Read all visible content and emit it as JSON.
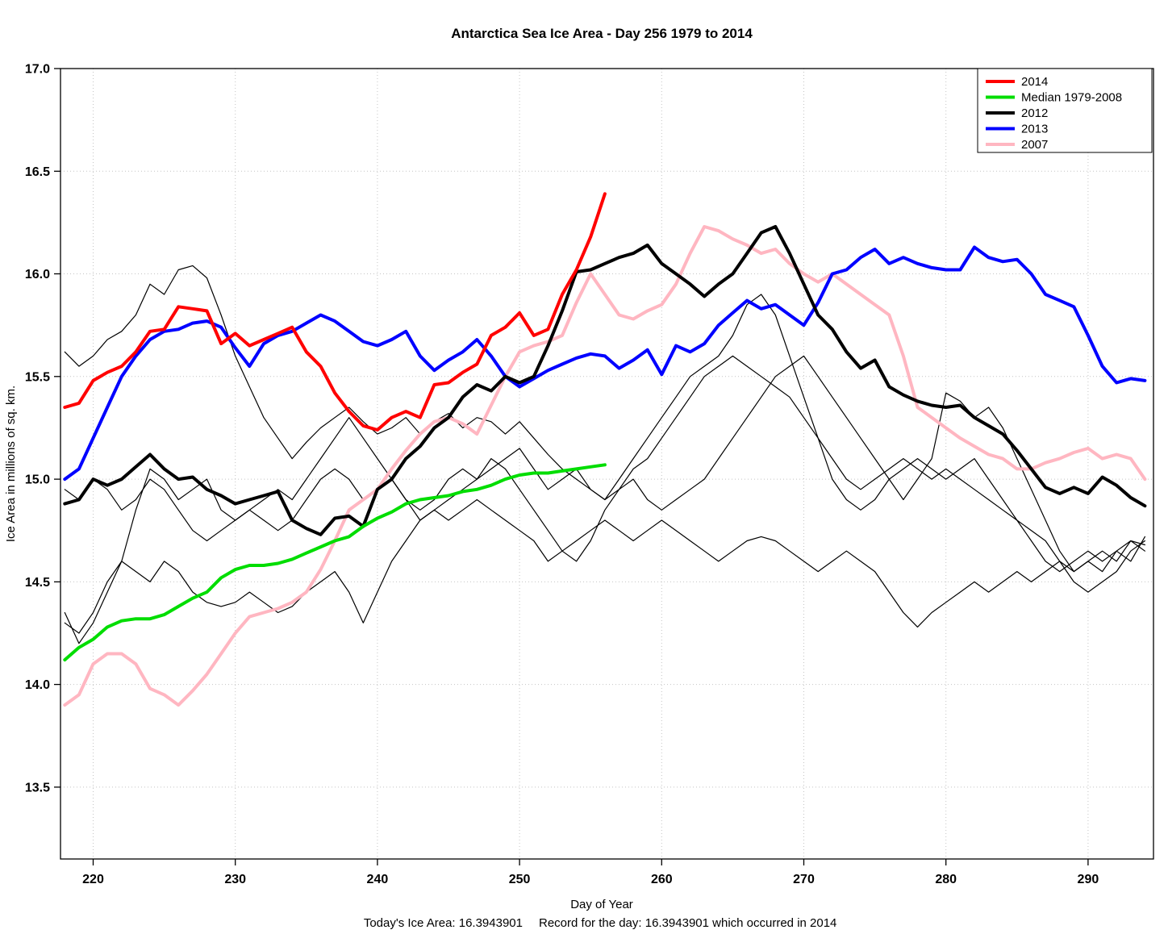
{
  "footer": {
    "today": "Today's Ice Area: 16.3943901",
    "record": "Record for the day: 16.3943901 which occurred in 2014"
  },
  "chart_data": {
    "type": "line",
    "title": "Antarctica Sea Ice Area - Day 256 1979 to 2014",
    "xlabel": "Day of Year",
    "ylabel": "Ice Area in millions of sq. km.",
    "xlim": [
      217.7,
      294.6
    ],
    "ylim": [
      13.15,
      17.0
    ],
    "grid": "dotted",
    "x_ticks": [
      220,
      230,
      240,
      250,
      260,
      270,
      280,
      290
    ],
    "x_tick_labels": [
      "220",
      "230",
      "240",
      "250",
      "260",
      "270",
      "280",
      "290"
    ],
    "y_ticks": [
      13.5,
      14.0,
      14.5,
      15.0,
      15.5,
      16.0,
      16.5,
      17.0
    ],
    "y_tick_labels": [
      "13.5",
      "14.0",
      "14.5",
      "15.0",
      "15.5",
      "16.0",
      "16.5",
      "17.0"
    ],
    "legend": {
      "position": "top-right",
      "items": [
        {
          "label": "2014",
          "color": "#ff0000"
        },
        {
          "label": "Median 1979-2008",
          "color": "#00dd00"
        },
        {
          "label": "2012",
          "color": "#000000"
        },
        {
          "label": "2013",
          "color": "#0000ff"
        },
        {
          "label": "2007",
          "color": "#ffb6c1"
        }
      ]
    },
    "series": [
      {
        "name": "other-year-1",
        "color": "#000000",
        "width": 1.2,
        "legend": false,
        "day_start": 218,
        "values": [
          15.62,
          15.55,
          15.6,
          15.68,
          15.72,
          15.8,
          15.95,
          15.9,
          16.02,
          16.04,
          15.98,
          15.8,
          15.6,
          15.45,
          15.3,
          15.2,
          15.1,
          15.18,
          15.25,
          15.3,
          15.35,
          15.28,
          15.22,
          15.25,
          15.3,
          15.22,
          15.28,
          15.32,
          15.25,
          15.3,
          15.28,
          15.22,
          15.28,
          15.2,
          15.12,
          15.05,
          15.0,
          14.95,
          14.9,
          15.0,
          15.1,
          15.2,
          15.3,
          15.4,
          15.5,
          15.55,
          15.6,
          15.7,
          15.85,
          15.9,
          15.8,
          15.6,
          15.4,
          15.2,
          15.0,
          14.9,
          14.85,
          14.9,
          15.0,
          15.05,
          15.1,
          15.05,
          15.0,
          15.05,
          15.1,
          15.0,
          14.9,
          14.8,
          14.7,
          14.6,
          14.55,
          14.6,
          14.65,
          14.6,
          14.65,
          14.7,
          14.68
        ]
      },
      {
        "name": "other-year-2",
        "color": "#000000",
        "width": 1.2,
        "legend": false,
        "day_start": 218,
        "values": [
          14.35,
          14.2,
          14.3,
          14.45,
          14.6,
          14.85,
          15.05,
          15.0,
          14.9,
          14.95,
          15.0,
          14.85,
          14.8,
          14.85,
          14.9,
          14.95,
          14.9,
          15.0,
          15.1,
          15.2,
          15.3,
          15.2,
          15.1,
          15.0,
          14.9,
          14.8,
          14.85,
          14.9,
          14.95,
          15.0,
          15.05,
          15.1,
          15.15,
          15.05,
          14.95,
          15.0,
          15.05,
          14.95,
          14.9,
          14.95,
          15.0,
          14.9,
          14.85,
          14.9,
          14.95,
          15.0,
          15.1,
          15.2,
          15.3,
          15.4,
          15.5,
          15.55,
          15.6,
          15.5,
          15.4,
          15.3,
          15.2,
          15.1,
          15.0,
          14.9,
          15.0,
          15.1,
          15.42,
          15.38,
          15.3,
          15.35,
          15.25,
          15.1,
          14.95,
          14.8,
          14.65,
          14.55,
          14.6,
          14.55,
          14.65,
          14.6,
          14.72
        ]
      },
      {
        "name": "other-year-3",
        "color": "#000000",
        "width": 1.2,
        "legend": false,
        "day_start": 218,
        "values": [
          14.3,
          14.25,
          14.35,
          14.5,
          14.6,
          14.55,
          14.5,
          14.6,
          14.55,
          14.45,
          14.4,
          14.38,
          14.4,
          14.45,
          14.4,
          14.35,
          14.38,
          14.45,
          14.5,
          14.55,
          14.45,
          14.3,
          14.45,
          14.6,
          14.7,
          14.8,
          14.85,
          14.8,
          14.85,
          14.9,
          14.85,
          14.8,
          14.75,
          14.7,
          14.6,
          14.65,
          14.7,
          14.75,
          14.8,
          14.75,
          14.7,
          14.75,
          14.8,
          14.75,
          14.7,
          14.65,
          14.6,
          14.65,
          14.7,
          14.72,
          14.7,
          14.65,
          14.6,
          14.55,
          14.6,
          14.65,
          14.6,
          14.55,
          14.45,
          14.35,
          14.28,
          14.35,
          14.4,
          14.45,
          14.5,
          14.45,
          14.5,
          14.55,
          14.5,
          14.55,
          14.6,
          14.55,
          14.6,
          14.65,
          14.6,
          14.7,
          14.65
        ]
      },
      {
        "name": "other-year-4",
        "color": "#000000",
        "width": 1.2,
        "legend": false,
        "day_start": 218,
        "values": [
          14.95,
          14.9,
          15.0,
          14.95,
          14.85,
          14.9,
          15.0,
          14.95,
          14.85,
          14.75,
          14.7,
          14.75,
          14.8,
          14.85,
          14.8,
          14.75,
          14.8,
          14.9,
          15.0,
          15.05,
          15.0,
          14.9,
          14.95,
          15.0,
          14.9,
          14.85,
          14.9,
          15.0,
          15.05,
          15.0,
          15.1,
          15.05,
          14.95,
          14.85,
          14.75,
          14.65,
          14.6,
          14.7,
          14.85,
          14.95,
          15.05,
          15.1,
          15.2,
          15.3,
          15.4,
          15.5,
          15.55,
          15.6,
          15.55,
          15.5,
          15.45,
          15.4,
          15.3,
          15.2,
          15.1,
          15.0,
          14.95,
          15.0,
          15.05,
          15.1,
          15.05,
          15.0,
          15.05,
          15.0,
          14.95,
          14.9,
          14.85,
          14.8,
          14.75,
          14.7,
          14.6,
          14.5,
          14.45,
          14.5,
          14.55,
          14.65,
          14.7
        ]
      },
      {
        "name": "2007",
        "color": "#ffb6c1",
        "width": 4,
        "legend": true,
        "day_start": 218,
        "values": [
          13.9,
          13.95,
          14.1,
          14.15,
          14.15,
          14.1,
          13.98,
          13.95,
          13.9,
          13.97,
          14.05,
          14.15,
          14.25,
          14.33,
          14.35,
          14.37,
          14.4,
          14.45,
          14.56,
          14.7,
          14.85,
          14.9,
          14.95,
          15.05,
          15.14,
          15.22,
          15.28,
          15.3,
          15.27,
          15.22,
          15.36,
          15.5,
          15.62,
          15.65,
          15.67,
          15.7,
          15.86,
          16.0,
          15.9,
          15.8,
          15.78,
          15.82,
          15.85,
          15.95,
          16.1,
          16.23,
          16.21,
          16.17,
          16.14,
          16.1,
          16.12,
          16.05,
          16.0,
          15.96,
          16.0,
          15.95,
          15.9,
          15.85,
          15.8,
          15.6,
          15.35,
          15.3,
          15.25,
          15.2,
          15.16,
          15.12,
          15.1,
          15.05,
          15.05,
          15.08,
          15.1,
          15.13,
          15.15,
          15.1,
          15.12,
          15.1,
          15.0
        ]
      },
      {
        "name": "2013",
        "color": "#0000ff",
        "width": 4,
        "legend": true,
        "day_start": 218,
        "values": [
          15.0,
          15.05,
          15.2,
          15.35,
          15.5,
          15.6,
          15.68,
          15.72,
          15.73,
          15.76,
          15.77,
          15.74,
          15.64,
          15.55,
          15.66,
          15.7,
          15.72,
          15.76,
          15.8,
          15.77,
          15.72,
          15.67,
          15.65,
          15.68,
          15.72,
          15.6,
          15.53,
          15.58,
          15.62,
          15.68,
          15.6,
          15.5,
          15.45,
          15.49,
          15.53,
          15.56,
          15.59,
          15.61,
          15.6,
          15.54,
          15.58,
          15.63,
          15.51,
          15.65,
          15.62,
          15.66,
          15.75,
          15.81,
          15.87,
          15.83,
          15.85,
          15.8,
          15.75,
          15.86,
          16.0,
          16.02,
          16.08,
          16.12,
          16.05,
          16.08,
          16.05,
          16.03,
          16.02,
          16.02,
          16.13,
          16.08,
          16.06,
          16.07,
          16.0,
          15.9,
          15.87,
          15.84,
          15.7,
          15.55,
          15.47,
          15.49,
          15.48
        ]
      },
      {
        "name": "2012",
        "color": "#000000",
        "width": 4,
        "legend": true,
        "day_start": 218,
        "values": [
          14.88,
          14.9,
          15.0,
          14.97,
          15.0,
          15.06,
          15.12,
          15.05,
          15.0,
          15.01,
          14.95,
          14.92,
          14.88,
          14.9,
          14.92,
          14.94,
          14.8,
          14.76,
          14.73,
          14.81,
          14.82,
          14.77,
          14.95,
          15.0,
          15.1,
          15.16,
          15.25,
          15.3,
          15.4,
          15.46,
          15.43,
          15.5,
          15.47,
          15.5,
          15.65,
          15.82,
          16.01,
          16.02,
          16.05,
          16.08,
          16.1,
          16.14,
          16.05,
          16.0,
          15.95,
          15.89,
          15.95,
          16.0,
          16.1,
          16.2,
          16.23,
          16.1,
          15.95,
          15.8,
          15.73,
          15.62,
          15.54,
          15.58,
          15.45,
          15.41,
          15.38,
          15.36,
          15.35,
          15.36,
          15.3,
          15.26,
          15.22,
          15.14,
          15.05,
          14.96,
          14.93,
          14.96,
          14.93,
          15.01,
          14.97,
          14.91,
          14.87
        ]
      },
      {
        "name": "median-1979-2008",
        "color": "#00dd00",
        "width": 4,
        "legend": true,
        "day_start": 218,
        "values": [
          14.12,
          14.18,
          14.22,
          14.28,
          14.31,
          14.32,
          14.32,
          14.34,
          14.38,
          14.42,
          14.45,
          14.52,
          14.56,
          14.58,
          14.58,
          14.59,
          14.61,
          14.64,
          14.67,
          14.7,
          14.72,
          14.77,
          14.81,
          14.84,
          14.88,
          14.9,
          14.91,
          14.92,
          14.94,
          14.95,
          14.97,
          15.0,
          15.02,
          15.03,
          15.03,
          15.04,
          15.05,
          15.06,
          15.07
        ]
      },
      {
        "name": "2014",
        "color": "#ff0000",
        "width": 4,
        "legend": true,
        "day_start": 218,
        "values": [
          15.35,
          15.37,
          15.48,
          15.52,
          15.55,
          15.62,
          15.72,
          15.73,
          15.84,
          15.83,
          15.82,
          15.66,
          15.71,
          15.65,
          15.68,
          15.71,
          15.74,
          15.62,
          15.55,
          15.42,
          15.33,
          15.26,
          15.24,
          15.3,
          15.33,
          15.3,
          15.46,
          15.47,
          15.52,
          15.56,
          15.7,
          15.74,
          15.81,
          15.7,
          15.73,
          15.9,
          16.02,
          16.18,
          16.39
        ]
      }
    ]
  }
}
